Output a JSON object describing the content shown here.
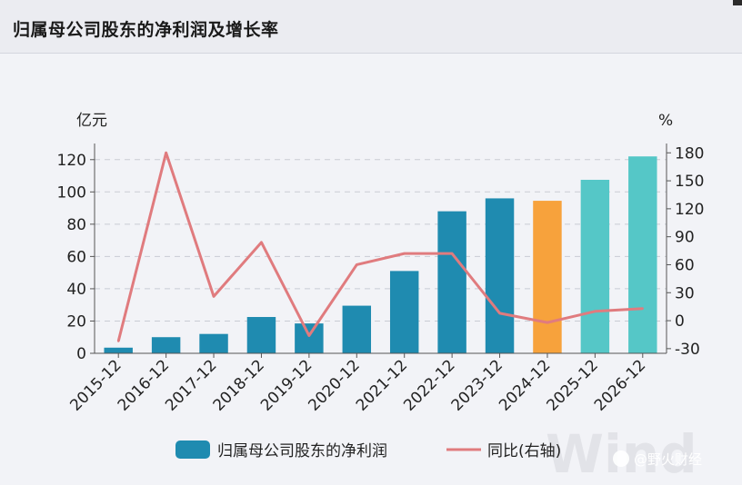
{
  "title": "归属母公司股东的净利润及增长率",
  "brand": "@野火财经",
  "watermark": "Wind",
  "colors": {
    "bar_actual": "#1f8bb0",
    "bar_current": "#f7a23c",
    "bar_forecast": "#55c7c7",
    "line": "#e07b7e",
    "axis": "#555555",
    "grid": "#c9ccd4"
  },
  "chart_data": {
    "type": "bar",
    "categories": [
      "2015-12",
      "2016-12",
      "2017-12",
      "2018-12",
      "2019-12",
      "2020-12",
      "2021-12",
      "2022-12",
      "2023-12",
      "2024-12",
      "2025-12",
      "2026-12"
    ],
    "series": [
      {
        "name": "归属母公司股东的净利润",
        "type": "bar",
        "axis": "left",
        "values": [
          3.5,
          10,
          12,
          22.5,
          18.5,
          29.5,
          51,
          88,
          96,
          94.5,
          107.5,
          122
        ],
        "bar_kinds": [
          "actual",
          "actual",
          "actual",
          "actual",
          "actual",
          "actual",
          "actual",
          "actual",
          "actual",
          "current",
          "forecast",
          "forecast"
        ]
      },
      {
        "name": "同比(右轴)",
        "type": "line",
        "axis": "right",
        "values": [
          -22,
          180,
          26,
          84,
          -16,
          60,
          72,
          72,
          8,
          -2,
          10,
          13
        ]
      }
    ],
    "left_axis": {
      "unit": "亿元",
      "ylim": [
        0,
        130
      ],
      "ticks": [
        0,
        20,
        40,
        60,
        80,
        100,
        120
      ]
    },
    "right_axis": {
      "unit": "%",
      "ylim": [
        -35,
        190
      ],
      "ticks": [
        -30,
        0,
        30,
        60,
        90,
        120,
        150,
        180
      ]
    },
    "grid": true,
    "legend_position": "bottom"
  }
}
